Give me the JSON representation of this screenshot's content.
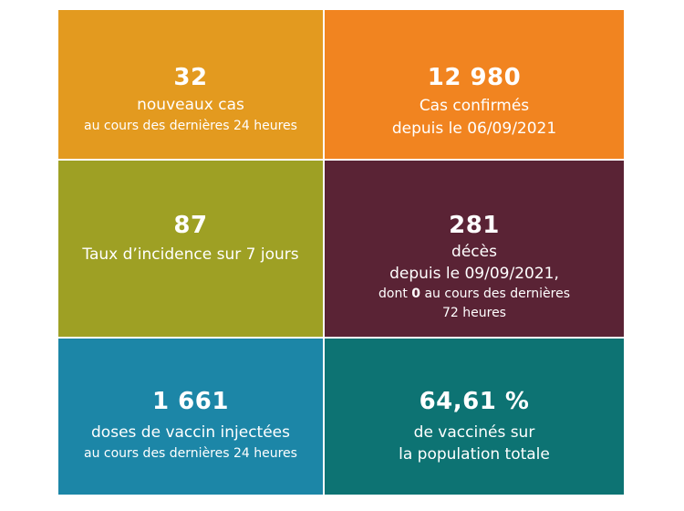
{
  "tiles": [
    {
      "value": "32",
      "label": "nouveaux cas",
      "sub": "au cours des dernières 24 heures",
      "color": "#e39a1f"
    },
    {
      "value": "12 980",
      "label": "Cas confirmés",
      "sub": "depuis le 06/09/2021",
      "color": "#f18420"
    },
    {
      "value": "87",
      "label": "Taux d’incidence sur 7 jours",
      "color": "#9ea024"
    },
    {
      "value": "281",
      "label": "décès",
      "sub1": "depuis le 09/09/2021,",
      "sub2_pre": "dont ",
      "sub2_bold": "0",
      "sub2_post": " au cours des dernières",
      "sub3": "72 heures",
      "color": "#5a2335"
    },
    {
      "value": "1 661",
      "label": "doses de vaccin injectées",
      "sub": "au cours des dernières 24 heures",
      "color": "#1c86a7"
    },
    {
      "value": "64,61 %",
      "label": "de vaccinés sur",
      "label2": "la population totale",
      "color": "#0d7373"
    }
  ]
}
